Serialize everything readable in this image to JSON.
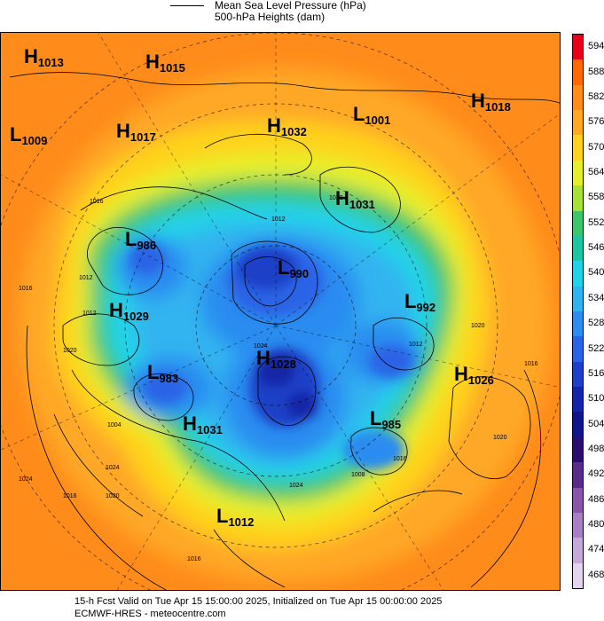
{
  "legend": {
    "mslp": "Mean Sea Level Pressure (hPa)",
    "heights": "500-hPa Heights (dam)"
  },
  "colorbar": {
    "levels": [
      "594",
      "588",
      "582",
      "576",
      "570",
      "564",
      "558",
      "552",
      "546",
      "540",
      "534",
      "528",
      "522",
      "516",
      "510",
      "504",
      "498",
      "492",
      "486",
      "480",
      "474",
      "468"
    ],
    "colors": [
      "#e8001a",
      "#ff6a00",
      "#ff8c1a",
      "#ffa726",
      "#ffd21f",
      "#e6ef2b",
      "#a8e03a",
      "#3ec46a",
      "#1fc4a0",
      "#22d3e8",
      "#30b4f0",
      "#2c8cf0",
      "#2a64e6",
      "#1f3fc8",
      "#1525a8",
      "#10168a",
      "#2a0c6e",
      "#5a2c8a",
      "#8a55a8",
      "#a87fc2",
      "#c6a9d8",
      "#e4d4ee"
    ]
  },
  "highs": [
    {
      "letter": "H",
      "value": "1013"
    },
    {
      "letter": "H",
      "value": "1015"
    },
    {
      "letter": "H",
      "value": "1017"
    },
    {
      "letter": "H",
      "value": "1032"
    },
    {
      "letter": "H",
      "value": "1018"
    },
    {
      "letter": "H",
      "value": "1031"
    },
    {
      "letter": "H",
      "value": "1029"
    },
    {
      "letter": "H",
      "value": "1028"
    },
    {
      "letter": "H",
      "value": "1026"
    },
    {
      "letter": "H",
      "value": "1031"
    }
  ],
  "lows": [
    {
      "letter": "L",
      "value": "1009"
    },
    {
      "letter": "L",
      "value": "1001"
    },
    {
      "letter": "L",
      "value": "986"
    },
    {
      "letter": "L",
      "value": "990"
    },
    {
      "letter": "L",
      "value": "992"
    },
    {
      "letter": "L",
      "value": "983"
    },
    {
      "letter": "L",
      "value": "985"
    },
    {
      "letter": "L",
      "value": "1012"
    }
  ],
  "isobar_labels": [
    "1016",
    "1020",
    "1012",
    "1012",
    "1024",
    "1004",
    "1016",
    "1020",
    "1024",
    "1020",
    "1016",
    "1016",
    "1024",
    "1020",
    "1016",
    "1012",
    "1020",
    "1012",
    "1008",
    "1016",
    "1024"
  ],
  "footer": {
    "line1": "15-h Fcst Valid on Tue Apr 15 15:00:00 2025, Initialized on Tue Apr 15 00:00:00 2025",
    "line2": "ECMWF-HRES  - meteocentre.com"
  }
}
